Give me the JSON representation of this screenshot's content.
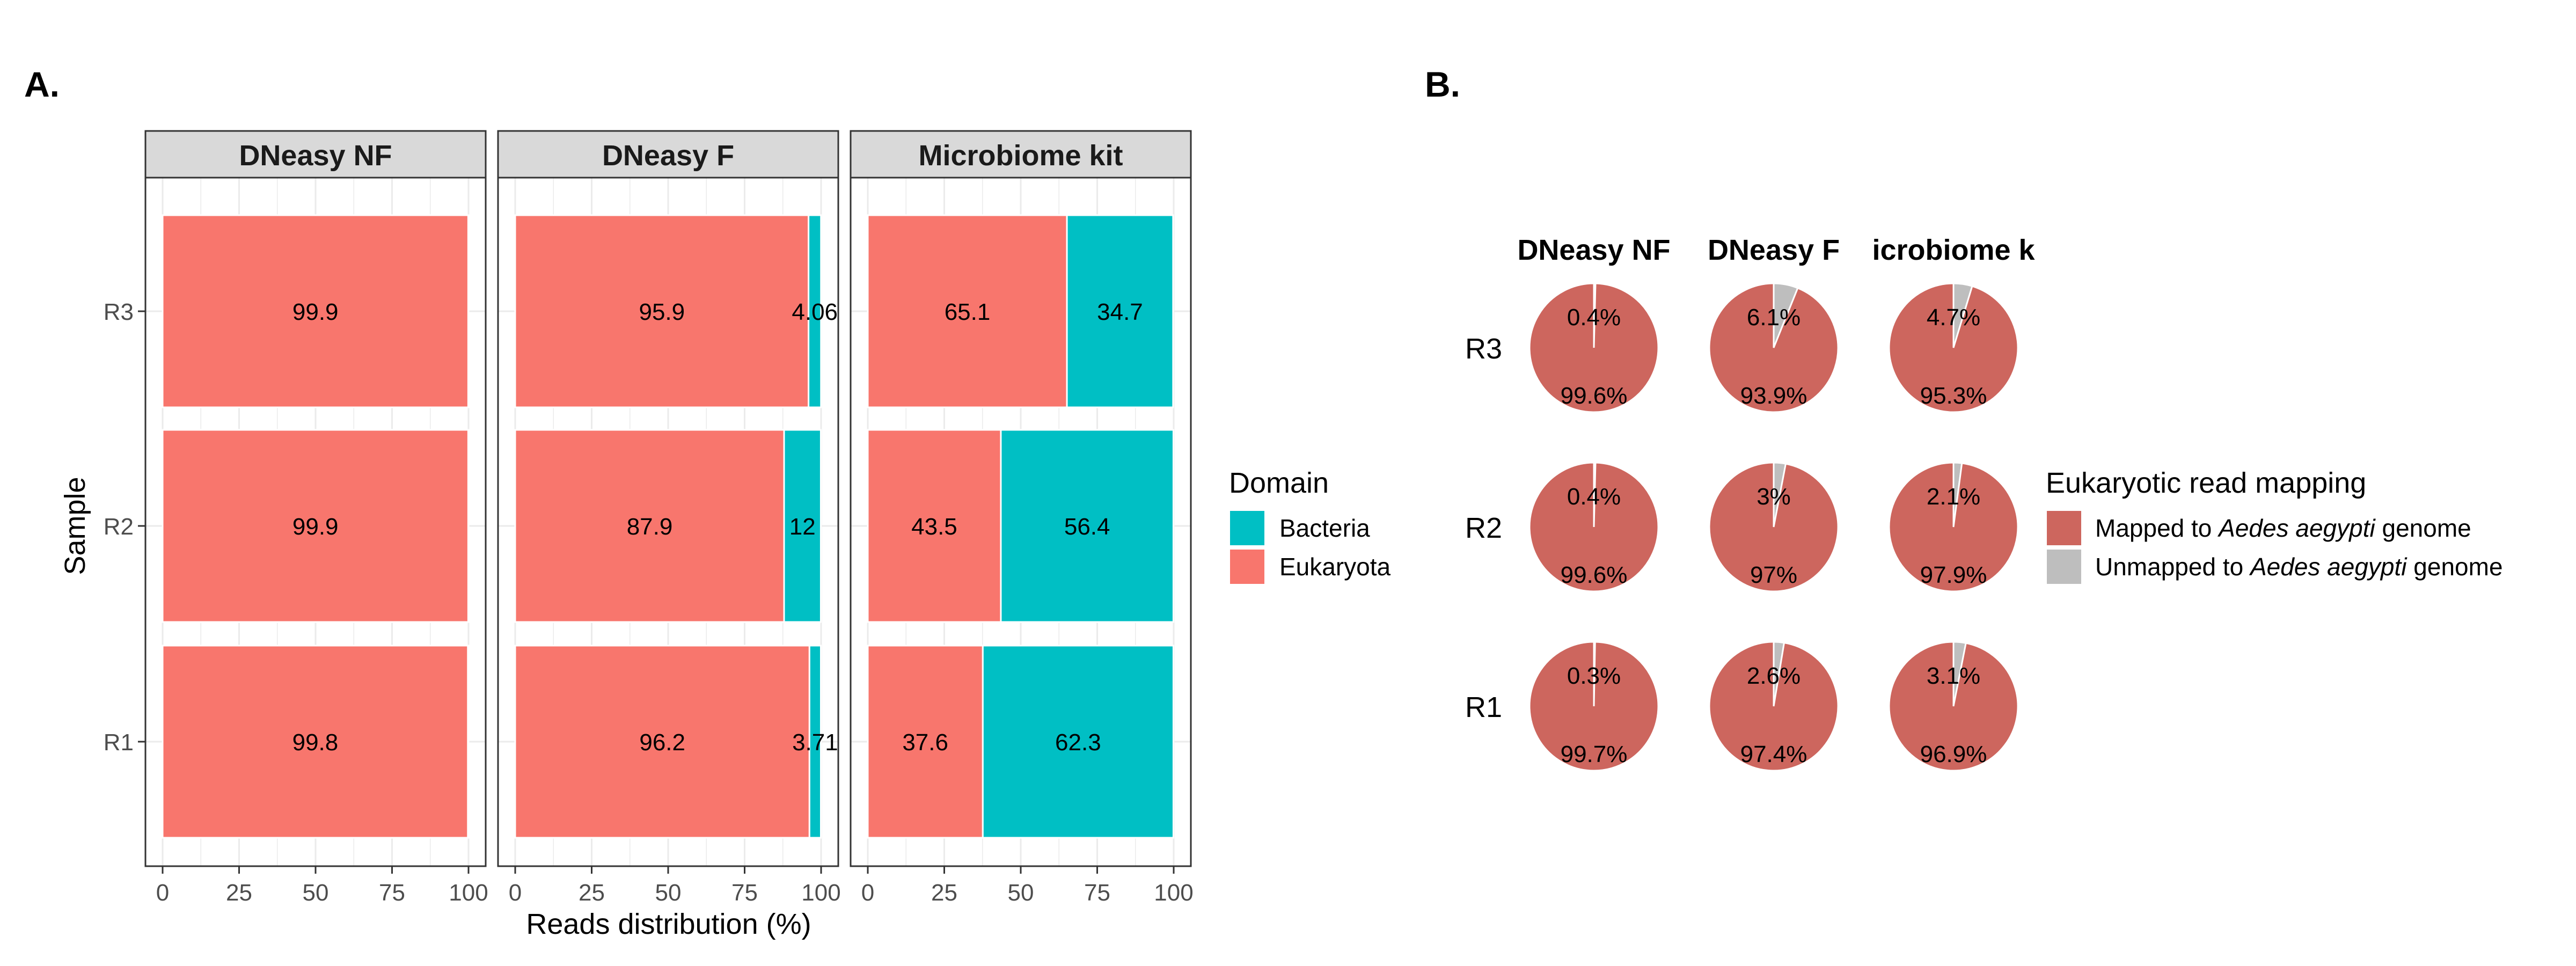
{
  "panel_labels": {
    "a": "A.",
    "b": "B."
  },
  "colors": {
    "bacteria": "#00BFC4",
    "eukaryota": "#F8766D",
    "mapped": "#CD665E",
    "unmapped": "#BEBEBE",
    "strip_bg": "#D9D9D9",
    "grid": "#EBEBEB"
  },
  "chart_data": [
    {
      "type": "bar",
      "orientation": "horizontal",
      "stacked": true,
      "facets": [
        "DNeasy NF",
        "DNeasy F",
        "Microbiome kit"
      ],
      "categories": [
        "R1",
        "R2",
        "R3"
      ],
      "series": [
        {
          "name": "Eukaryota",
          "values": [
            [
              99.8,
              99.9,
              99.9
            ],
            [
              96.2,
              87.9,
              95.9
            ],
            [
              37.6,
              43.5,
              65.1
            ]
          ]
        },
        {
          "name": "Bacteria",
          "values": [
            [
              0.2,
              0.1,
              0.1
            ],
            [
              3.71,
              12,
              4.06
            ],
            [
              62.3,
              56.4,
              34.7
            ]
          ]
        }
      ],
      "labels": {
        "Eukaryota": [
          [
            "99.8",
            "99.9",
            "99.9"
          ],
          [
            "96.2",
            "87.9",
            "95.9"
          ],
          [
            "37.6",
            "43.5",
            "65.1"
          ]
        ],
        "Bacteria": [
          [
            "",
            "",
            ""
          ],
          [
            "3.71",
            "12",
            "4.06"
          ],
          [
            "62.3",
            "56.4",
            "34.7"
          ]
        ]
      },
      "xlabel": "Reads distribution (%)",
      "ylabel": "Sample",
      "xlim": [
        0,
        100
      ],
      "xticks": [
        "0",
        "25",
        "50",
        "75",
        "100"
      ],
      "legend": {
        "title": "Domain",
        "position": "right",
        "entries": [
          "Bacteria",
          "Eukaryota"
        ]
      },
      "grid": true
    },
    {
      "type": "pie",
      "facets": [
        "DNeasy NF",
        "DNeasy F",
        "icrobiome k"
      ],
      "rows": [
        "R3",
        "R2",
        "R1"
      ],
      "slices": [
        "Mapped",
        "Unmapped"
      ],
      "values": [
        [
          [
            99.6,
            0.4
          ],
          [
            93.9,
            6.1
          ],
          [
            95.3,
            4.7
          ]
        ],
        [
          [
            99.6,
            0.4
          ],
          [
            97,
            3
          ],
          [
            97.9,
            2.1
          ]
        ],
        [
          [
            99.7,
            0.3
          ],
          [
            97.4,
            2.6
          ],
          [
            96.9,
            3.1
          ]
        ]
      ],
      "labels": [
        [
          [
            "99.6%",
            "0.4%"
          ],
          [
            "93.9%",
            "6.1%"
          ],
          [
            "95.3%",
            "4.7%"
          ]
        ],
        [
          [
            "99.6%",
            "0.4%"
          ],
          [
            "97%",
            "3%"
          ],
          [
            "97.9%",
            "2.1%"
          ]
        ],
        [
          [
            "99.7%",
            "0.3%"
          ],
          [
            "97.4%",
            "2.6%"
          ],
          [
            "96.9%",
            "3.1%"
          ]
        ]
      ],
      "legend": {
        "title": "Eukaryotic read mapping",
        "position": "right",
        "entries": [
          {
            "prefix": "Mapped to ",
            "species": "Aedes aegypti",
            "suffix": " genome"
          },
          {
            "prefix": "Unmapped to ",
            "species": "Aedes aegypti",
            "suffix": " genome"
          }
        ]
      }
    }
  ]
}
